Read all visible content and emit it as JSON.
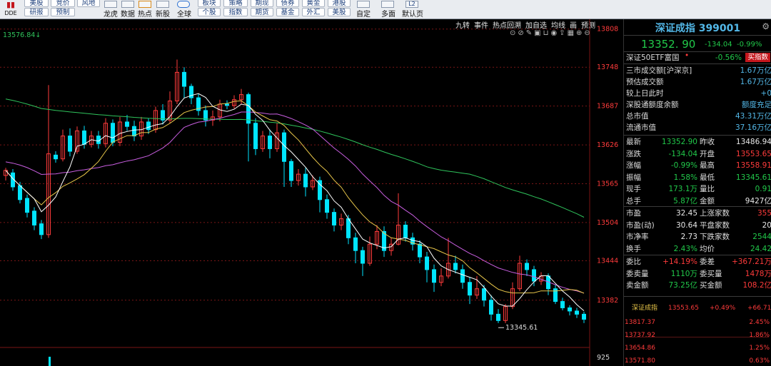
{
  "toolbar": {
    "dde_label": "DDE",
    "btn_col1_top": "美股",
    "btn_col1_bot": "研报",
    "btn_col2_top": "竞价",
    "btn_col2_bot": "预制",
    "btn_col3_top": "风地",
    "lbl_longhu": "龙虎",
    "lbl_shuju": "数据",
    "lbl_redian": "热点",
    "lbl_xingu": "新股",
    "lbl_quanqiu": "全球",
    "btn_col4_top": "板块",
    "btn_col4_bot": "个股",
    "btn_col5_top": "策略",
    "btn_col5_bot": "指数",
    "btn_col6_top": "期现",
    "btn_col6_bot": "期货",
    "btn_col7_top": "债券",
    "btn_col7_bot": "基金",
    "btn_col8_top": "黄金",
    "btn_col8_bot": "外汇",
    "btn_col9_top": "港股",
    "btn_col9_bot": "美股",
    "lbl_ziding": "自定",
    "lbl_duomian": "多面",
    "lbl_moren": "默认页",
    "l2_label": "L2"
  },
  "subbar": {
    "items": [
      "九转",
      "事件",
      "热点回溯",
      "加自选",
      "均线",
      "画",
      "预测"
    ]
  },
  "chart_data": {
    "type": "candlestick",
    "title": "",
    "ylim": [
      13310,
      13820
    ],
    "price_ticks": [
      13808,
      13748,
      13687,
      13626,
      13565,
      13504,
      13444,
      13382
    ],
    "top_left_label": "13576.84↓",
    "low_marker_label": "13345.61",
    "low_marker_value": 13345.61,
    "volume_tick": "925",
    "colors": {
      "up": "#ff3b3b",
      "down": "#00e5ff",
      "ma5": "#ffffff",
      "ma10": "#e8c64a",
      "ma20": "#c85ee0",
      "ma60": "#2fc45c",
      "grid": "#7a1515"
    },
    "candles": [
      [
        13578,
        13586,
        13590,
        13570
      ],
      [
        13582,
        13560,
        13588,
        13554
      ],
      [
        13562,
        13540,
        13568,
        13534
      ],
      [
        13542,
        13520,
        13548,
        13512
      ],
      [
        13522,
        13500,
        13528,
        13492
      ],
      [
        13502,
        13485,
        13508,
        13478
      ],
      [
        13485,
        13612,
        13720,
        13480
      ],
      [
        13610,
        13604,
        13616,
        13598
      ],
      [
        13604,
        13640,
        13650,
        13600
      ],
      [
        13640,
        13616,
        13652,
        13608
      ],
      [
        13616,
        13648,
        13655,
        13612
      ],
      [
        13648,
        13627,
        13656,
        13620
      ],
      [
        13627,
        13640,
        13648,
        13622
      ],
      [
        13640,
        13628,
        13648,
        13620
      ],
      [
        13628,
        13660,
        13668,
        13622
      ],
      [
        13660,
        13630,
        13666,
        13624
      ],
      [
        13630,
        13662,
        13670,
        13624
      ],
      [
        13662,
        13655,
        13673,
        13648
      ],
      [
        13655,
        13640,
        13664,
        13632
      ],
      [
        13640,
        13662,
        13670,
        13634
      ],
      [
        13662,
        13650,
        13668,
        13643
      ],
      [
        13650,
        13680,
        13686,
        13645
      ],
      [
        13680,
        13665,
        13690,
        13658
      ],
      [
        13665,
        13695,
        13710,
        13660
      ],
      [
        13695,
        13740,
        13760,
        13690
      ],
      [
        13740,
        13718,
        13748,
        13700
      ],
      [
        13718,
        13700,
        13722,
        13690
      ],
      [
        13700,
        13680,
        13706,
        13672
      ],
      [
        13680,
        13665,
        13688,
        13655
      ],
      [
        13665,
        13670,
        13680,
        13656
      ],
      [
        13670,
        13690,
        13697,
        13663
      ],
      [
        13690,
        13688,
        13696,
        13682
      ],
      [
        13688,
        13697,
        13704,
        13683
      ],
      [
        13697,
        13705,
        13714,
        13690
      ],
      [
        13705,
        13660,
        13708,
        13600
      ],
      [
        13660,
        13620,
        13668,
        13610
      ],
      [
        13620,
        13640,
        13648,
        13615
      ],
      [
        13640,
        13620,
        13650,
        13605
      ],
      [
        13620,
        13645,
        13660,
        13615
      ],
      [
        13645,
        13600,
        13650,
        13560
      ],
      [
        13600,
        13570,
        13604,
        13560
      ],
      [
        13570,
        13580,
        13588,
        13562
      ],
      [
        13580,
        13560,
        13590,
        13545
      ],
      [
        13560,
        13570,
        13578,
        13555
      ],
      [
        13570,
        13540,
        13576,
        13520
      ],
      [
        13540,
        13520,
        13548,
        13510
      ],
      [
        13520,
        13500,
        13526,
        13490
      ],
      [
        13500,
        13510,
        13518,
        13492
      ],
      [
        13510,
        13480,
        13516,
        13470
      ],
      [
        13480,
        13460,
        13488,
        13440
      ],
      [
        13460,
        13440,
        13466,
        13420
      ],
      [
        13440,
        13470,
        13482,
        13436
      ],
      [
        13470,
        13490,
        13500,
        13462
      ],
      [
        13490,
        13460,
        13498,
        13450
      ],
      [
        13460,
        13470,
        13480,
        13452
      ],
      [
        13470,
        13500,
        13550,
        13468
      ],
      [
        13500,
        13480,
        13506,
        13474
      ],
      [
        13480,
        13470,
        13488,
        13460
      ],
      [
        13470,
        13450,
        13476,
        13440
      ],
      [
        13450,
        13430,
        13458,
        13410
      ],
      [
        13430,
        13410,
        13438,
        13395
      ],
      [
        13410,
        13420,
        13432,
        13404
      ],
      [
        13420,
        13440,
        13480,
        13416
      ],
      [
        13440,
        13430,
        13452,
        13424
      ],
      [
        13430,
        13410,
        13438,
        13400
      ],
      [
        13410,
        13390,
        13418,
        13376
      ],
      [
        13390,
        13400,
        13420,
        13384
      ],
      [
        13400,
        13382,
        13406,
        13372
      ],
      [
        13382,
        13360,
        13390,
        13350
      ],
      [
        13360,
        13350,
        13368,
        13346
      ],
      [
        13350,
        13372,
        13376,
        13346
      ],
      [
        13372,
        13400,
        13410,
        13368
      ],
      [
        13400,
        13440,
        13452,
        13396
      ],
      [
        13440,
        13430,
        13446,
        13420
      ],
      [
        13430,
        13412,
        13436,
        13404
      ],
      [
        13412,
        13420,
        13426,
        13406
      ],
      [
        13420,
        13400,
        13424,
        13390
      ],
      [
        13400,
        13380,
        13406,
        13376
      ],
      [
        13380,
        13370,
        13386,
        13366
      ],
      [
        13370,
        13365,
        13374,
        13358
      ],
      [
        13365,
        13360,
        13370,
        13354
      ],
      [
        13360,
        13352,
        13364,
        13346
      ]
    ]
  },
  "panel": {
    "title": "深证成指 399001",
    "price": "13352. 90",
    "change": "-134.04",
    "change_pct": "-0.99%",
    "etf_name": "深证50ETF富国",
    "etf_pct": "-0.56%",
    "buy_badge": "买指数",
    "info": [
      {
        "label": "三市成交额[沪深京]",
        "value": "1.67万亿"
      },
      {
        "label": "预估成交额",
        "value": "1.67万亿"
      },
      {
        "label": "较上日此时",
        "value": "+0"
      },
      {
        "label": "深股通额度余额",
        "value": "额度充足"
      },
      {
        "label": "总市值",
        "value": "43.31万亿"
      },
      {
        "label": "流通市值",
        "value": "37.16万亿"
      }
    ],
    "quotes": [
      {
        "a": "最新",
        "b": "13352.90",
        "c": "昨收",
        "d": "13486.94"
      },
      {
        "a": "涨跌",
        "b": "-134.04",
        "c": "开盘",
        "d": "13553.65"
      },
      {
        "a": "涨幅",
        "b": "-0.99%",
        "c": "最高",
        "d": "13558.91"
      },
      {
        "a": "振幅",
        "b": "1.58%",
        "c": "最低",
        "d": "13345.61"
      },
      {
        "a": "现手",
        "b": "173.1万",
        "c": "量比",
        "d": "0.91"
      },
      {
        "a": "总手",
        "b": "5.87亿",
        "c": "金额",
        "d": "9427亿"
      }
    ],
    "ratios": [
      {
        "a": "市盈",
        "b": "32.45",
        "c": "上涨家数",
        "d": "355"
      },
      {
        "a": "市盈(动)",
        "b": "30.64",
        "c": "平盘家数",
        "d": "20"
      },
      {
        "a": "市净率",
        "b": "2.73",
        "c": "下跌家数",
        "d": "2544"
      },
      {
        "a": "换手",
        "b": "2.43%",
        "c": "均价",
        "d": "24.42"
      }
    ],
    "orders": [
      {
        "a": "委比",
        "b": "+14.19%",
        "c": "委差",
        "d": "+367.21万"
      },
      {
        "a": "委卖量",
        "b": "1110万",
        "c": "委买量",
        "d": "1478万"
      },
      {
        "a": "卖金额",
        "b": "73.25亿",
        "c": "买金额",
        "d": "108.2亿"
      }
    ],
    "mini_chart": {
      "name": "深证成指",
      "open": "13553.65",
      "pct": "+0.49%",
      "chg": "+66.71",
      "axis": [
        {
          "price": "13817.37",
          "pct": "2.45%"
        },
        {
          "price": "13737.92",
          "pct": "1.86%"
        },
        {
          "price": "13654.86",
          "pct": "1.25%"
        },
        {
          "price": "13571.80",
          "pct": "0.63%"
        }
      ]
    }
  }
}
